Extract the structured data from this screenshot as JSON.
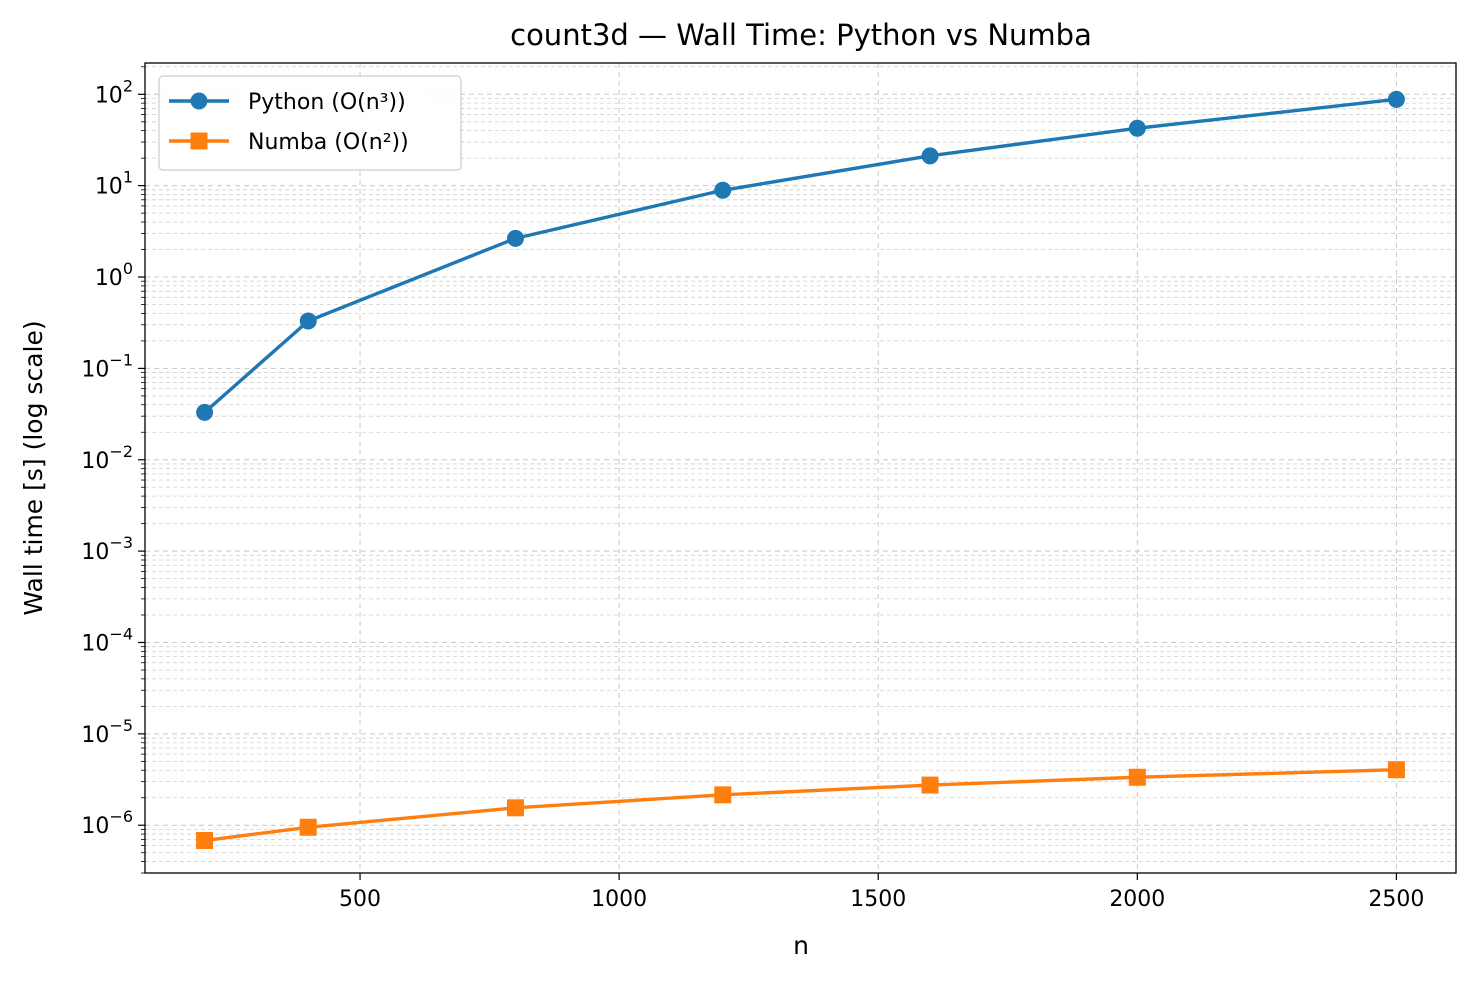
{
  "chart_data": {
    "type": "line",
    "title": "count3d — Wall Time: Python vs Numba",
    "xlabel": "n",
    "ylabel": "Wall time [s] (log scale)",
    "yscale": "log",
    "xlim": [
      85,
      2615
    ],
    "ylim": [
      3e-07,
      220
    ],
    "x_ticks": [
      500,
      1000,
      1500,
      2000,
      2500
    ],
    "x_tick_labels": [
      "500",
      "1000",
      "1500",
      "2000",
      "2500"
    ],
    "y_ticks": [
      {
        "value": 1e-06,
        "base": "10",
        "exp": "−6"
      },
      {
        "value": 1e-05,
        "base": "10",
        "exp": "−5"
      },
      {
        "value": 0.0001,
        "base": "10",
        "exp": "−4"
      },
      {
        "value": 0.001,
        "base": "10",
        "exp": "−3"
      },
      {
        "value": 0.01,
        "base": "10",
        "exp": "−2"
      },
      {
        "value": 0.1,
        "base": "10",
        "exp": "−1"
      },
      {
        "value": 1,
        "base": "10",
        "exp": "0"
      },
      {
        "value": 10,
        "base": "10",
        "exp": "1"
      },
      {
        "value": 100,
        "base": "10",
        "exp": "2"
      }
    ],
    "grid": true,
    "legend_position": "top-left",
    "x": [
      200,
      400,
      800,
      1200,
      1600,
      2000,
      2500
    ],
    "series": [
      {
        "name": "Python (O(n³))",
        "color": "#1f77b4",
        "marker": "circle",
        "values": [
          0.033,
          0.33,
          2.65,
          8.9,
          21.2,
          42.5,
          88.0
        ]
      },
      {
        "name": "Numba (O(n²))",
        "color": "#ff7f0e",
        "marker": "square",
        "values": [
          6.8e-07,
          9.5e-07,
          1.55e-06,
          2.15e-06,
          2.75e-06,
          3.35e-06,
          4.05e-06
        ]
      }
    ]
  }
}
